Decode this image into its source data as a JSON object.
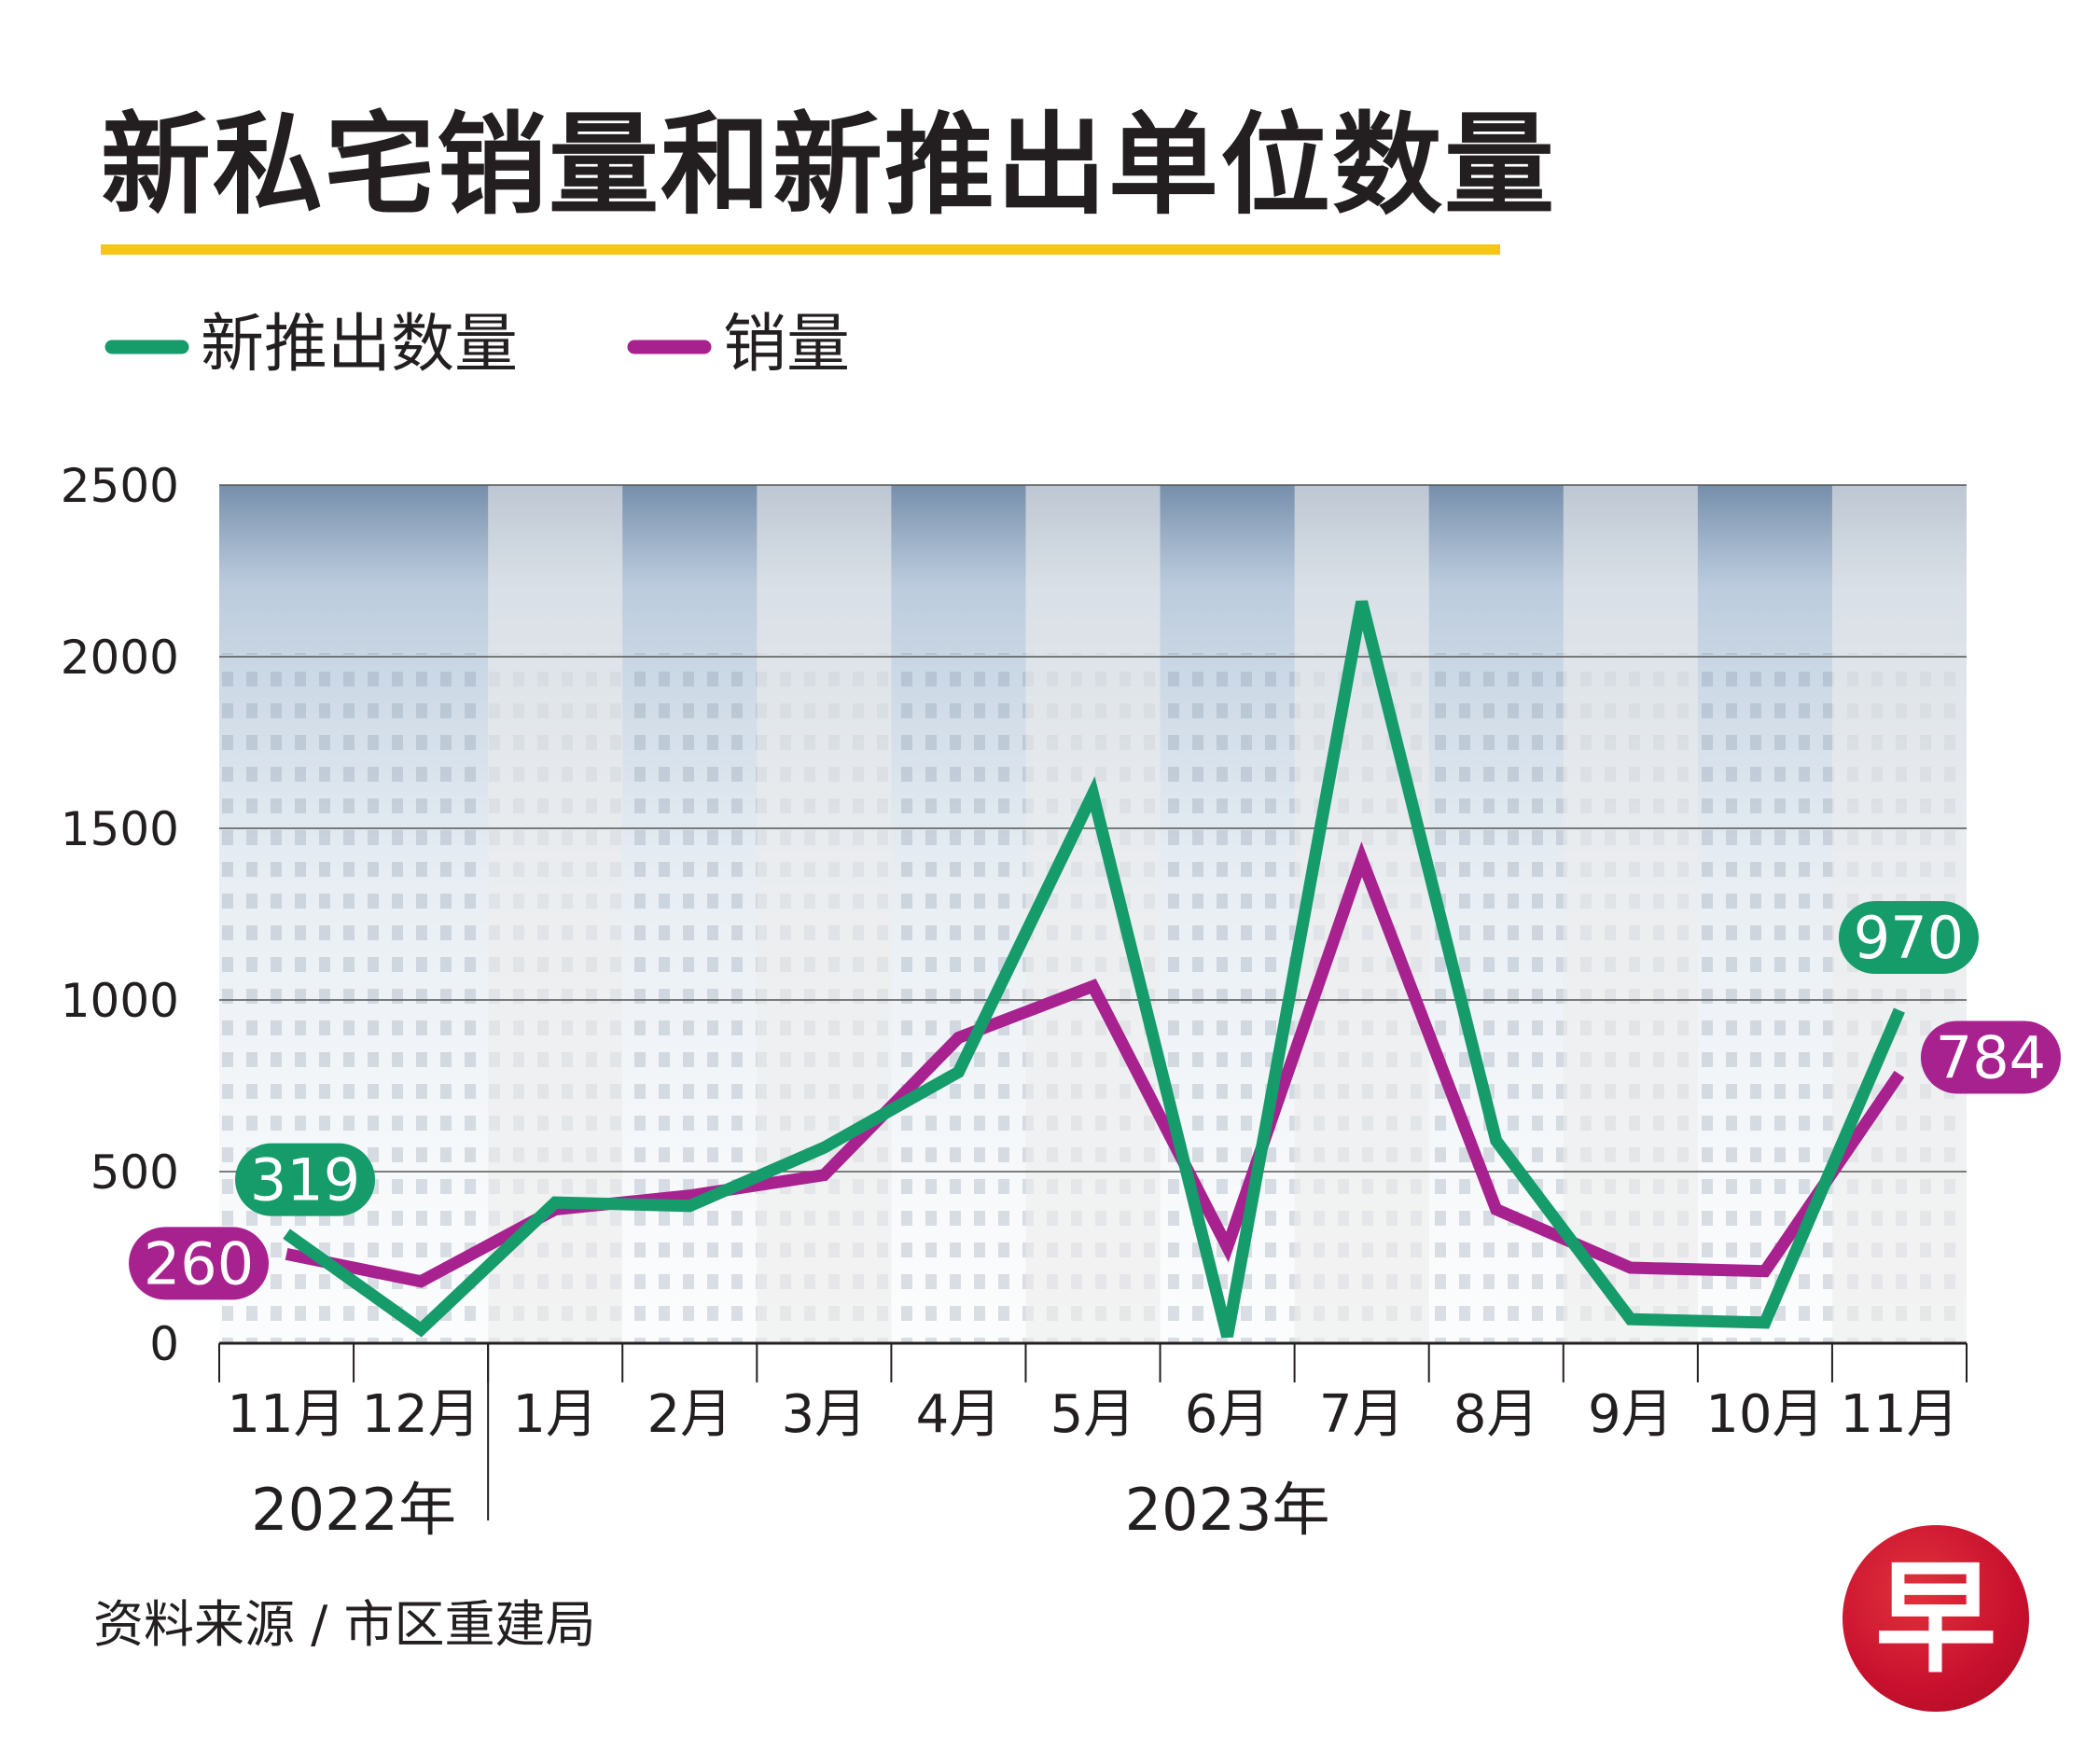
{
  "title": "新私宅销量和新推出单位数量",
  "source": "资料来源 / 市区重建局",
  "logo_text": "早",
  "colors": {
    "new_launch": "#169b6b",
    "sales": "#a8228f",
    "title_underline": "#f5c518",
    "logo": "#c8102e",
    "column_band": "#ececec"
  },
  "chart_data": {
    "type": "line",
    "categories": [
      "11月",
      "12月",
      "1月",
      "2月",
      "3月",
      "4月",
      "5月",
      "6月",
      "7月",
      "8月",
      "9月",
      "10月",
      "11月"
    ],
    "year_groups": [
      {
        "label": "2022年",
        "from": 0,
        "to": 1
      },
      {
        "label": "2023年",
        "from": 2,
        "to": 12
      }
    ],
    "ylim": [
      0,
      2500
    ],
    "yticks": [
      0,
      500,
      1000,
      1500,
      2000,
      2500
    ],
    "grid": true,
    "legend_position": "top-left",
    "series": [
      {
        "name": "新推出数量",
        "color": "#169b6b",
        "values": [
          319,
          40,
          410,
          400,
          570,
          790,
          1600,
          20,
          2160,
          590,
          70,
          60,
          970
        ]
      },
      {
        "name": "销量",
        "color": "#a8228f",
        "values": [
          260,
          180,
          390,
          430,
          490,
          890,
          1040,
          280,
          1410,
          390,
          220,
          210,
          784
        ]
      }
    ],
    "value_labels": [
      {
        "series": 0,
        "index": 0,
        "text": "319"
      },
      {
        "series": 1,
        "index": 0,
        "text": "260"
      },
      {
        "series": 0,
        "index": 12,
        "text": "970"
      },
      {
        "series": 1,
        "index": 12,
        "text": "784"
      }
    ]
  }
}
